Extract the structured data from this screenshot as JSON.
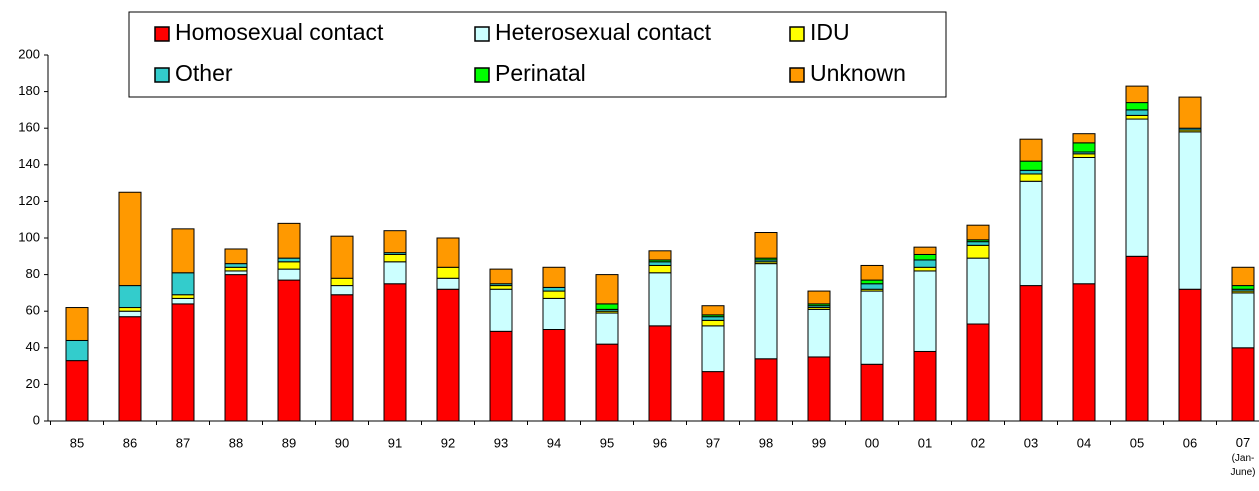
{
  "chart_data": {
    "type": "stacked_bar",
    "categories": [
      "85",
      "86",
      "87",
      "88",
      "89",
      "90",
      "91",
      "92",
      "93",
      "94",
      "95",
      "96",
      "97",
      "98",
      "99",
      "00",
      "01",
      "02",
      "03",
      "04",
      "05",
      "06",
      "07 (Jan-June)"
    ],
    "series": [
      {
        "name": "Homosexual contact",
        "color": "#ff0000",
        "values": [
          33,
          57,
          64,
          80,
          77,
          69,
          75,
          72,
          49,
          50,
          42,
          52,
          27,
          34,
          35,
          31,
          38,
          53,
          74,
          75,
          90,
          72,
          40
        ]
      },
      {
        "name": "Heterosexual contact",
        "color": "#ccffff",
        "values": [
          0,
          3,
          3,
          2,
          6,
          5,
          12,
          6,
          23,
          17,
          17,
          29,
          25,
          52,
          26,
          40,
          44,
          36,
          57,
          69,
          75,
          86,
          30
        ]
      },
      {
        "name": "IDU",
        "color": "#ffff00",
        "values": [
          0,
          2,
          2,
          2,
          4,
          4,
          4,
          6,
          2,
          4,
          1,
          4,
          3,
          1,
          1,
          1,
          2,
          7,
          4,
          2,
          2,
          1,
          1
        ]
      },
      {
        "name": "Other",
        "color": "#33cccc",
        "values": [
          11,
          12,
          12,
          2,
          2,
          0,
          1,
          0,
          1,
          2,
          1,
          2,
          2,
          1,
          1,
          3,
          4,
          2,
          2,
          1,
          3,
          1,
          1
        ]
      },
      {
        "name": "Perinatal",
        "color": "#00ff00",
        "values": [
          0,
          0,
          0,
          0,
          0,
          0,
          0,
          0,
          0,
          0,
          3,
          1,
          1,
          1,
          1,
          2,
          3,
          1,
          5,
          5,
          4,
          0,
          2
        ]
      },
      {
        "name": "Unknown",
        "color": "#ff9900",
        "values": [
          18,
          51,
          24,
          8,
          19,
          23,
          12,
          16,
          8,
          11,
          16,
          5,
          5,
          14,
          7,
          8,
          4,
          8,
          12,
          5,
          9,
          17,
          10
        ]
      }
    ],
    "ylim": [
      0,
      200
    ],
    "yticks": [
      0,
      20,
      40,
      60,
      80,
      100,
      120,
      140,
      160,
      180,
      200
    ],
    "legend": "top"
  }
}
